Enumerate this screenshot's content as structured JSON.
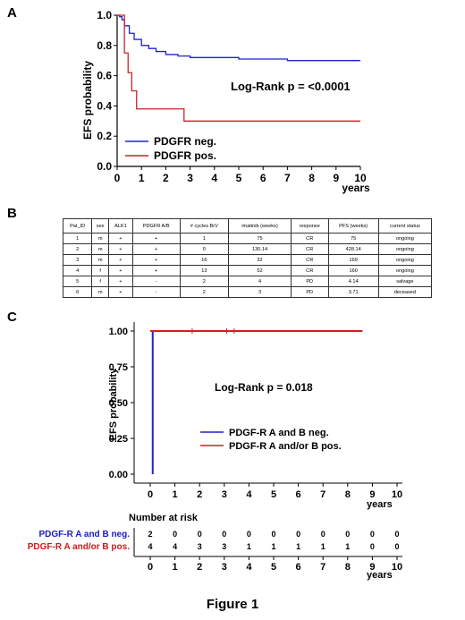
{
  "figure": {
    "caption": "Figure 1",
    "panel_labels": [
      "A",
      "B",
      "C"
    ]
  },
  "panel_a": {
    "ylabel": "EFS probability",
    "xlabel": "years",
    "annotation": "Log-Rank p = <0.0001",
    "legend": [
      "PDGFR neg.",
      "PDGFR pos."
    ],
    "yticks": [
      "1.0",
      "0.8",
      "0.6",
      "0.4",
      "0.2",
      "0.0"
    ],
    "xticks": [
      "0",
      "1",
      "2",
      "3",
      "4",
      "5",
      "6",
      "7",
      "8",
      "9",
      "10"
    ]
  },
  "panel_b": {
    "headers": [
      "Pat_ID",
      "sex",
      "ALK1",
      "PDGFR A/B",
      "# cycles BrV",
      "imatinib (weeks)",
      "response",
      "PFS (weeks)",
      "current status"
    ],
    "rows": [
      [
        "1",
        "m",
        "+",
        "+",
        "1",
        "75",
        "CR",
        "75",
        "ongoing"
      ],
      [
        "2",
        "m",
        "+",
        "+",
        "0",
        "130.14",
        "CR",
        "428.14",
        "ongoing"
      ],
      [
        "3",
        "m",
        "+",
        "+",
        "16",
        "32",
        "CR",
        "169",
        "ongoing"
      ],
      [
        "4",
        "f",
        "+",
        "+",
        "13",
        "52",
        "CR",
        "160",
        "ongoing"
      ],
      [
        "5",
        "f",
        "+",
        "-",
        "2",
        "4",
        "PD",
        "4.14",
        "salvage"
      ],
      [
        "6",
        "m",
        "+",
        "-",
        "2",
        "3",
        "PD",
        "3.71",
        "deceased"
      ]
    ]
  },
  "panel_c": {
    "ylabel": "EFS probability",
    "xlabel": "years",
    "annotation": "Log-Rank p = 0.018",
    "legend": [
      "PDGF-R A and B neg.",
      "PDGF-R A and/or B pos."
    ],
    "yticks": [
      "1.00",
      "0.75",
      "0.50",
      "0.25",
      "0.00"
    ],
    "xticks": [
      "0",
      "1",
      "2",
      "3",
      "4",
      "5",
      "6",
      "7",
      "8",
      "9",
      "10"
    ],
    "risk_title": "Number at risk",
    "risk_rows": [
      {
        "label": "PDGF-R A and B neg.",
        "values": [
          "2",
          "0",
          "0",
          "0",
          "0",
          "0",
          "0",
          "0",
          "0",
          "0",
          "0"
        ]
      },
      {
        "label": "PDGF-R A and/or B pos.",
        "values": [
          "4",
          "4",
          "3",
          "3",
          "1",
          "1",
          "1",
          "1",
          "1",
          "0",
          "0"
        ]
      }
    ],
    "risk_xticks": [
      "0",
      "1",
      "2",
      "3",
      "4",
      "5",
      "6",
      "7",
      "8",
      "9",
      "10"
    ],
    "risk_xlabel": "years"
  },
  "colors": {
    "neg": "#2222cc",
    "pos": "#cc2222",
    "neg_text": "#1a1acc",
    "pos_text": "#cc1a1a"
  },
  "chart_data": [
    {
      "type": "line",
      "xlabel": "years",
      "ylabel": "EFS probability",
      "xlim": [
        0,
        10
      ],
      "ylim": [
        0,
        1
      ],
      "series": [
        {
          "name": "PDGFR neg.",
          "x": [
            0,
            0.1,
            0.2,
            0.3,
            0.5,
            0.7,
            1,
            1.3,
            1.6,
            2,
            2.5,
            3,
            4,
            5,
            6,
            7,
            8,
            9,
            10
          ],
          "y": [
            1.0,
            0.99,
            0.97,
            0.93,
            0.88,
            0.84,
            0.8,
            0.78,
            0.76,
            0.74,
            0.73,
            0.72,
            0.72,
            0.71,
            0.71,
            0.7,
            0.7,
            0.7,
            0.7
          ]
        },
        {
          "name": "PDGFR pos.",
          "x": [
            0,
            0.3,
            0.45,
            0.6,
            0.8,
            1.5,
            2.5,
            2.75,
            10
          ],
          "y": [
            1.0,
            0.75,
            0.62,
            0.5,
            0.38,
            0.38,
            0.38,
            0.3,
            0.3
          ]
        }
      ]
    },
    {
      "type": "line",
      "xlabel": "years",
      "ylabel": "EFS probability",
      "xlim": [
        0,
        10
      ],
      "ylim": [
        0,
        1
      ],
      "series": [
        {
          "name": "PDGF-R A and B neg.",
          "x": [
            0,
            0.1,
            0.1
          ],
          "y": [
            1.0,
            1.0,
            0.0
          ]
        },
        {
          "name": "PDGF-R A and/or B pos.",
          "x": [
            0,
            8.6
          ],
          "y": [
            1.0,
            1.0
          ],
          "censor_x": [
            1.7,
            3.1,
            3.4
          ]
        }
      ]
    }
  ]
}
